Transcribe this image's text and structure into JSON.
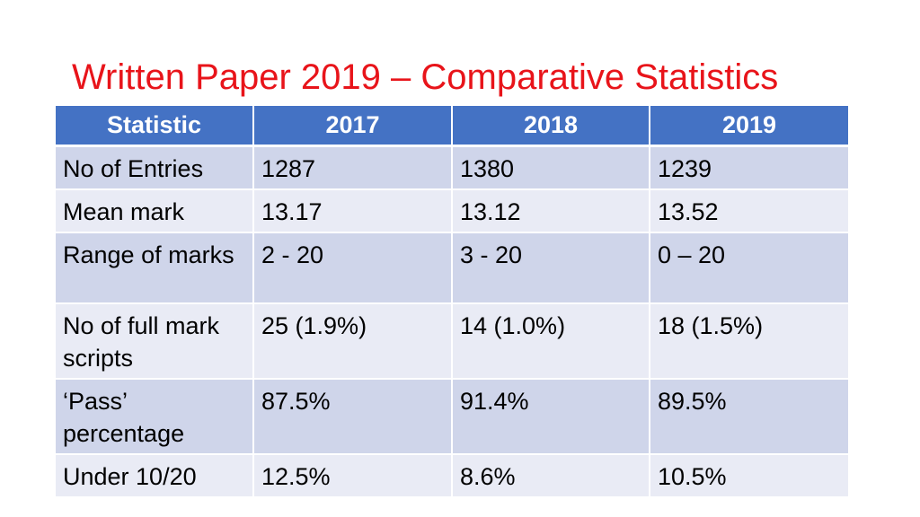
{
  "title": "Written Paper 2019 – Comparative Statistics",
  "table": {
    "headers": [
      "Statistic",
      "2017",
      "2018",
      "2019"
    ],
    "rows": [
      [
        "No of Entries",
        "1287",
        "1380",
        "1239"
      ],
      [
        "Mean mark",
        "13.17",
        "13.12",
        "13.52"
      ],
      [
        "Range of marks",
        "2 - 20",
        "3 - 20",
        "0 – 20"
      ],
      [
        "No of full mark scripts",
        "25 (1.9%)",
        "14 (1.0%)",
        "18 (1.5%)"
      ],
      [
        "‘Pass’ percentage",
        "87.5%",
        "91.4%",
        "89.5%"
      ],
      [
        "Under 10/20",
        "12.5%",
        "8.6%",
        "10.5%"
      ]
    ]
  },
  "colors": {
    "title": "#e8141a",
    "header_bg": "#4472c4",
    "row_dark": "#cfd5ea",
    "row_light": "#e9ebf5"
  }
}
